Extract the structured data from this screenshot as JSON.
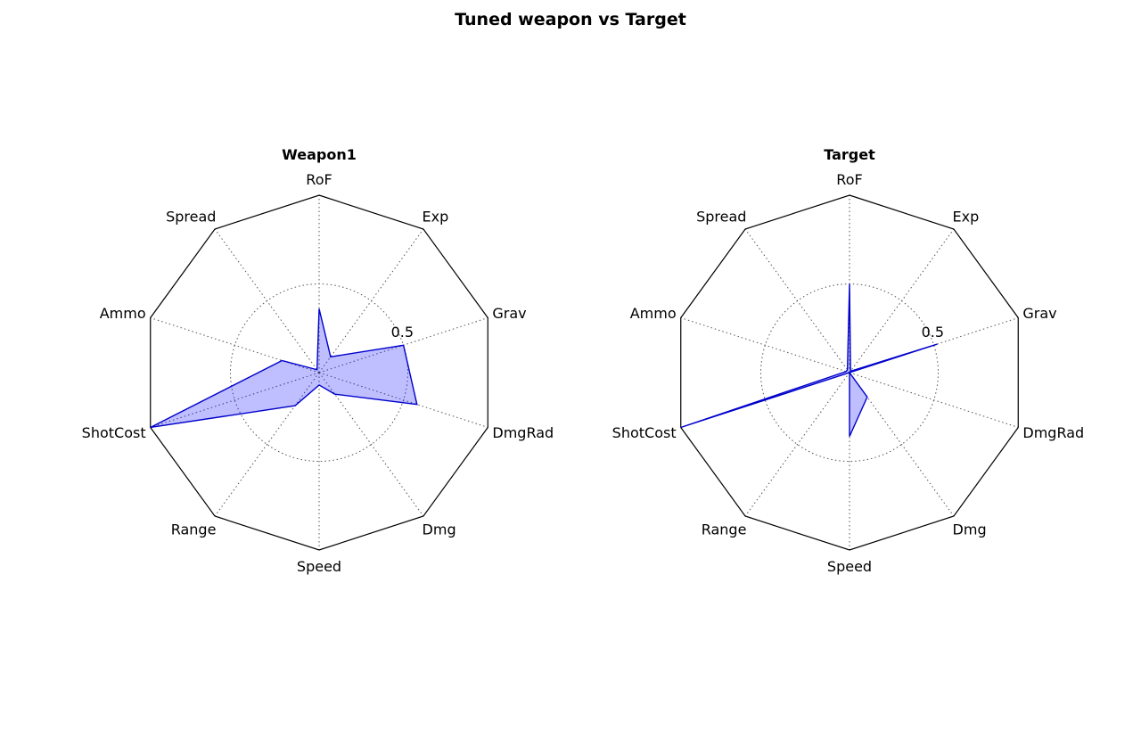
{
  "figure": {
    "title": "Tuned weapon vs Target"
  },
  "chart_data": [
    {
      "type": "radar",
      "title": "Weapon1",
      "axes": [
        "RoF",
        "Exp",
        "Grav",
        "DmgRad",
        "Dmg",
        "Speed",
        "Range",
        "ShotCost",
        "Ammo",
        "Spread"
      ],
      "rlim": [
        0,
        1
      ],
      "rticks": [
        0.5
      ],
      "rtick_labels": [
        "0.5"
      ],
      "grid": true,
      "series": [
        {
          "values": [
            0.36,
            0.11,
            0.5,
            0.58,
            0.15,
            0.07,
            0.23,
            1.0,
            0.22,
            0.02
          ]
        }
      ],
      "colors": {
        "line": "#0000cc",
        "fill": "#0000ff"
      }
    },
    {
      "type": "radar",
      "title": "Target",
      "axes": [
        "RoF",
        "Exp",
        "Grav",
        "DmgRad",
        "Dmg",
        "Speed",
        "Range",
        "ShotCost",
        "Ammo",
        "Spread"
      ],
      "rlim": [
        0,
        1
      ],
      "rticks": [
        0.5
      ],
      "rtick_labels": [
        "0.5"
      ],
      "grid": true,
      "series": [
        {
          "values": [
            0.5,
            0.01,
            0.52,
            0.0,
            0.17,
            0.36,
            0.0,
            1.0,
            0.02,
            0.02
          ]
        }
      ],
      "colors": {
        "line": "#0000cc",
        "fill": "#0000ff"
      }
    }
  ]
}
